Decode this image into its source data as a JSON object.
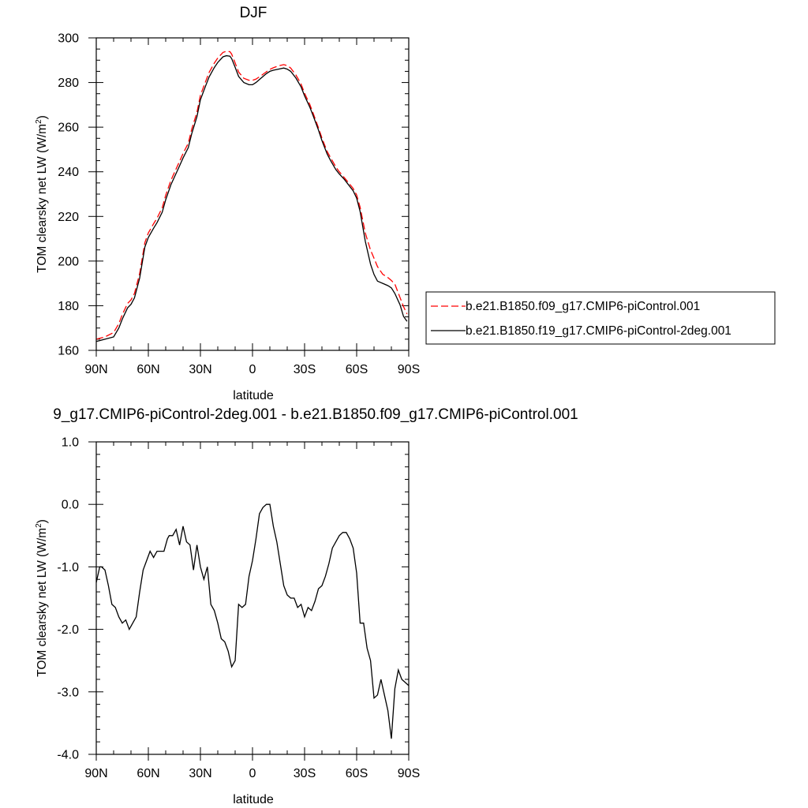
{
  "chart_data": [
    {
      "type": "line",
      "title": "DJF",
      "xlabel": "latitude",
      "ylabel": "TOM clearsky net LW (W/m",
      "ylabel_sup": "2",
      "ylabel_end": ")",
      "xlim": [
        90,
        -90
      ],
      "ylim": [
        160,
        300
      ],
      "x_ticks": [
        90,
        60,
        30,
        0,
        -30,
        -60,
        -90
      ],
      "x_tick_labels": [
        "90N",
        "60N",
        "30N",
        "0",
        "30S",
        "60S",
        "90S"
      ],
      "y_ticks": [
        160,
        180,
        200,
        220,
        240,
        260,
        280,
        300
      ],
      "y_tick_labels": [
        "160",
        "180",
        "200",
        "220",
        "240",
        "260",
        "280",
        "300"
      ],
      "legend": "outside-right",
      "series": [
        {
          "name": "b.e21.B1850.f09_g17.CMIP6-piControl.001",
          "color": "#ff0000",
          "dash": "dashed",
          "x": [
            90,
            85,
            80,
            77,
            75,
            72,
            70,
            68,
            65,
            62,
            60,
            57,
            55,
            52,
            50,
            47,
            45,
            42,
            40,
            37,
            35,
            32,
            30,
            27,
            25,
            22,
            20,
            17,
            15,
            13,
            12,
            10,
            8,
            5,
            2,
            0,
            -2,
            -5,
            -8,
            -10,
            -12,
            -15,
            -18,
            -20,
            -22,
            -25,
            -28,
            -30,
            -33,
            -35,
            -38,
            -40,
            -43,
            -45,
            -48,
            -50,
            -53,
            -55,
            -58,
            -60,
            -62,
            -65,
            -68,
            -70,
            -72,
            -75,
            -78,
            -80,
            -82,
            -85,
            -87,
            -89
          ],
          "y": [
            165,
            166,
            168,
            172,
            176,
            181,
            182.6,
            185.5,
            194.4,
            208.3,
            212.6,
            216.7,
            219.2,
            223.9,
            229.5,
            236.2,
            239.6,
            244.7,
            248.2,
            252.8,
            259.1,
            266.7,
            274.3,
            280.5,
            284.5,
            288.7,
            291.0,
            293.5,
            294.0,
            293.8,
            292.7,
            288.8,
            284.7,
            281.9,
            281.0,
            281.0,
            281.5,
            283.1,
            284.8,
            285.9,
            286.6,
            287.5,
            288.0,
            287.6,
            286.5,
            283.4,
            279.3,
            275.2,
            270.2,
            266.1,
            259.7,
            255.1,
            249.1,
            246.3,
            242.2,
            240.0,
            237.3,
            235.4,
            232.5,
            229.6,
            224.1,
            212.5,
            204.9,
            201.3,
            197.5,
            194.1,
            192.6,
            191.3,
            189.7,
            183.6,
            179.6,
            176.3
          ]
        },
        {
          "name": "b.e21.B1850.f19_g17.CMIP6-piControl-2deg.001",
          "color": "#000000",
          "dash": "solid",
          "x": [
            90,
            85,
            80,
            77,
            75,
            72,
            70,
            68,
            65,
            62,
            60,
            57,
            55,
            52,
            50,
            47,
            45,
            42,
            40,
            37,
            35,
            32,
            30,
            27,
            25,
            22,
            20,
            17,
            15,
            13,
            12,
            10,
            8,
            5,
            2,
            0,
            -2,
            -5,
            -8,
            -10,
            -12,
            -15,
            -18,
            -20,
            -22,
            -25,
            -28,
            -30,
            -33,
            -35,
            -38,
            -40,
            -43,
            -45,
            -48,
            -50,
            -53,
            -55,
            -58,
            -60,
            -62,
            -65,
            -68,
            -70,
            -72,
            -75,
            -78,
            -80,
            -82,
            -85,
            -87,
            -89
          ],
          "y": [
            164,
            165,
            166,
            170,
            174,
            179,
            180.6,
            183.5,
            192.4,
            206.3,
            210.6,
            214.7,
            217.2,
            221.9,
            227.5,
            234.2,
            237.6,
            242.7,
            246.2,
            250.8,
            257.1,
            264.7,
            272.3,
            278.5,
            282.5,
            286.7,
            289.0,
            291.5,
            292.0,
            291.8,
            290.7,
            286.8,
            282.7,
            280.0,
            279.0,
            279.0,
            280.0,
            282.0,
            284.0,
            285.0,
            285.5,
            286.0,
            286.5,
            286.0,
            285.0,
            282.0,
            278.0,
            274.0,
            269.0,
            265.0,
            258.7,
            254.0,
            248.0,
            245.0,
            241.0,
            239.0,
            236.5,
            234.5,
            231.5,
            228.2,
            222.2,
            208.8,
            198.6,
            194.0,
            191.0,
            190.0,
            189.0,
            188.0,
            185.5,
            180.4,
            175.2,
            173.0
          ]
        }
      ]
    },
    {
      "type": "line",
      "title": "9_g17.CMIP6-piControl-2deg.001 - b.e21.B1850.f09_g17.CMIP6-piControl.001",
      "xlabel": "latitude",
      "ylabel": "TOM clearsky net LW (W/m",
      "ylabel_sup": "2",
      "ylabel_end": ")",
      "xlim": [
        90,
        -90
      ],
      "ylim": [
        -4,
        1
      ],
      "x_ticks": [
        90,
        60,
        30,
        0,
        -30,
        -60,
        -90
      ],
      "x_tick_labels": [
        "90N",
        "60N",
        "30N",
        "0",
        "30S",
        "60S",
        "90S"
      ],
      "y_ticks": [
        -4,
        -3,
        -2,
        -1,
        0,
        1
      ],
      "y_tick_labels": [
        "-4.0",
        "-3.0",
        "-2.0",
        "-1.0",
        "0.0",
        "1.0"
      ],
      "series": [
        {
          "color": "#000000",
          "dash": "solid",
          "x": [
            90,
            88,
            87,
            85,
            83,
            81,
            79,
            77,
            75,
            73,
            71,
            69,
            67,
            65,
            63,
            61,
            59,
            57,
            55,
            53,
            51,
            49,
            48,
            46,
            44,
            42,
            40,
            38,
            36,
            34,
            32,
            30,
            28,
            26,
            24,
            22,
            20,
            18,
            16,
            14,
            12,
            10,
            8,
            6,
            4,
            2,
            0,
            -2,
            -4,
            -6,
            -8,
            -10,
            -12,
            -14,
            -16,
            -18,
            -20,
            -22,
            -24,
            -26,
            -28,
            -30,
            -32,
            -34,
            -36,
            -38,
            -40,
            -42,
            -44,
            -46,
            -48,
            -50,
            -52,
            -54,
            -56,
            -58,
            -60,
            -62,
            -64,
            -66,
            -68,
            -70,
            -72,
            -74,
            -76,
            -78,
            -80,
            -82,
            -84,
            -86,
            -88,
            -90
          ],
          "y": [
            -1.25,
            -1.0,
            -1.0,
            -1.05,
            -1.3,
            -1.6,
            -1.65,
            -1.8,
            -1.9,
            -1.85,
            -2.0,
            -1.9,
            -1.8,
            -1.4,
            -1.05,
            -0.9,
            -0.75,
            -0.85,
            -0.75,
            -0.75,
            -0.75,
            -0.55,
            -0.5,
            -0.5,
            -0.4,
            -0.65,
            -0.35,
            -0.6,
            -0.65,
            -1.05,
            -0.65,
            -1.0,
            -1.2,
            -1.0,
            -1.6,
            -1.7,
            -1.9,
            -2.15,
            -2.2,
            -2.35,
            -2.6,
            -2.5,
            -1.6,
            -1.65,
            -1.6,
            -1.15,
            -0.9,
            -0.55,
            -0.15,
            -0.05,
            0.0,
            0.0,
            -0.35,
            -0.6,
            -0.95,
            -1.3,
            -1.45,
            -1.5,
            -1.5,
            -1.65,
            -1.6,
            -1.8,
            -1.65,
            -1.7,
            -1.55,
            -1.35,
            -1.3,
            -1.15,
            -0.95,
            -0.7,
            -0.6,
            -0.5,
            -0.45,
            -0.45,
            -0.55,
            -0.7,
            -1.1,
            -1.9,
            -1.9,
            -2.3,
            -2.5,
            -3.1,
            -3.05,
            -2.8,
            -3.05,
            -3.3,
            -3.75,
            -2.95,
            -2.65,
            -2.8,
            -2.85,
            -2.9
          ]
        }
      ]
    }
  ]
}
